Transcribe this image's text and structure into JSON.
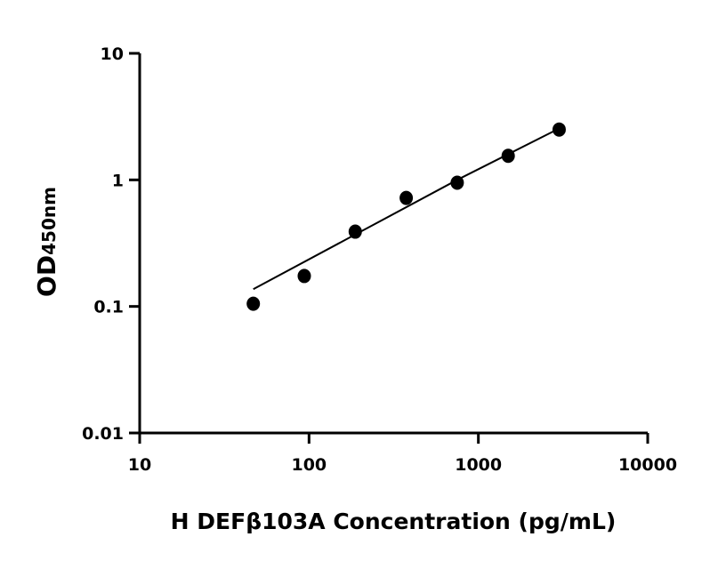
{
  "chart_data": {
    "type": "scatter",
    "xlabel": "H DEFβ103A Concentration (pg/mL)",
    "ylabel_main": "OD",
    "ylabel_sub": "450nm",
    "x_scale": "log",
    "y_scale": "log",
    "xlim": [
      10,
      10000
    ],
    "ylim": [
      0.01,
      10
    ],
    "x_ticks": [
      "10",
      "100",
      "1000",
      "10000"
    ],
    "y_ticks": [
      "0.01",
      "0.1",
      "1",
      "10"
    ],
    "grid": false,
    "points": [
      {
        "x": 46.875,
        "y": 0.105
      },
      {
        "x": 93.75,
        "y": 0.174
      },
      {
        "x": 187.5,
        "y": 0.39
      },
      {
        "x": 375,
        "y": 0.72
      },
      {
        "x": 750,
        "y": 0.95
      },
      {
        "x": 1500,
        "y": 1.55
      },
      {
        "x": 3000,
        "y": 2.5
      }
    ],
    "fit_curve": [
      {
        "x": 46.875,
        "y": 0.137
      },
      {
        "x": 187.5,
        "y": 0.37
      },
      {
        "x": 750,
        "y": 1.0
      },
      {
        "x": 3000,
        "y": 2.55
      }
    ],
    "colors": {
      "points": "#000000",
      "line": "#000000"
    }
  }
}
